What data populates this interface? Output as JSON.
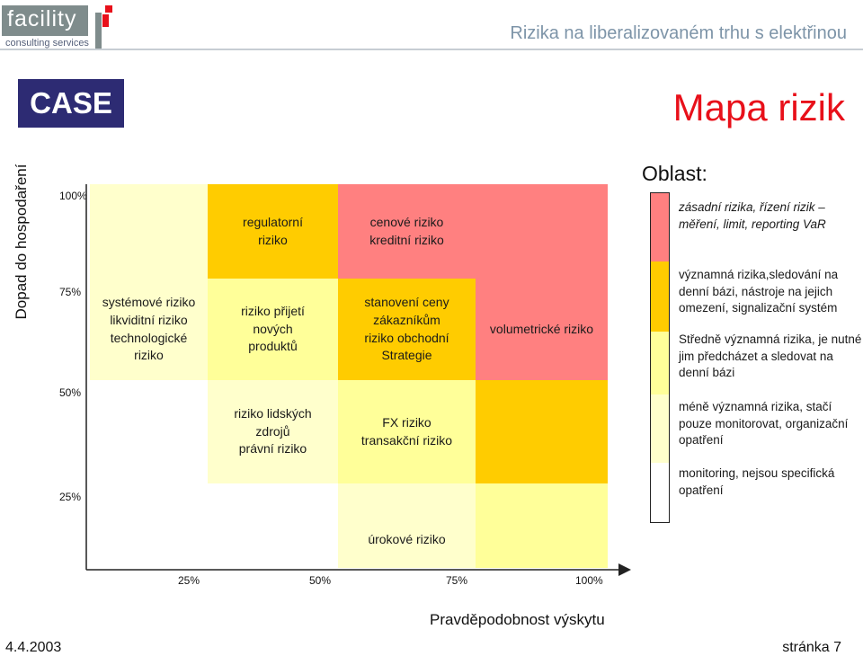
{
  "header": {
    "logo_text": "facility",
    "logo_subtitle": "consulting services",
    "document_title": "Rizika na liberalizovaném trhu s elektřinou"
  },
  "slide": {
    "badge": "CASE",
    "title": "Mapa rizik"
  },
  "colors": {
    "severe": "#ff8080",
    "significant": "#ffcc00",
    "medium": "#ffff99",
    "minor": "#ffffcc",
    "monitoring": "#ffffff",
    "badge": "#2d2b73",
    "title": "#e8101a"
  },
  "matrix": {
    "y_axis_label": "Dopad do hospodaření",
    "x_axis_label": "Pravděpodobnost výskytu",
    "y_ticks": [
      "100%",
      "75%",
      "50%",
      "25%"
    ],
    "x_ticks": [
      "25%",
      "50%",
      "75%",
      "100%"
    ],
    "cells": {
      "regulatory": "regulatorní\nriziko",
      "credit": "cenové riziko\nkreditní riziko",
      "systemic": "systémové riziko\nlikviditní riziko\ntechnologické\nriziko",
      "new_products": "riziko přijetí\nnových\nproduktů",
      "pricing": "stanovení ceny\nzákazníkům\nriziko obchodní\nStrategie",
      "volumetric": "volumetrické riziko",
      "human": "riziko lidských\nzdrojů\nprávní riziko",
      "fx": "FX riziko\ntransakční riziko",
      "interest": "úrokové riziko"
    }
  },
  "legend": {
    "title": "Oblast:",
    "items": [
      {
        "level": "severe",
        "text": "zásadní rizika, řízení rizik – měření, limit, reporting VaR"
      },
      {
        "level": "significant",
        "text": "významná rizika,sledování na denní bázi, nástroje na jejich omezení, signalizační systém"
      },
      {
        "level": "medium",
        "text": "Středně významná rizika, je nutné jim předcházet a sledovat na denní bázi"
      },
      {
        "level": "minor",
        "text": "méně významná rizika, stačí pouze monitorovat, organizační opatření"
      },
      {
        "level": "monitoring",
        "text": "monitoring, nejsou specifická\n        opatření"
      }
    ]
  },
  "footer": {
    "date": "4.4.2003",
    "page": "stránka 7"
  }
}
